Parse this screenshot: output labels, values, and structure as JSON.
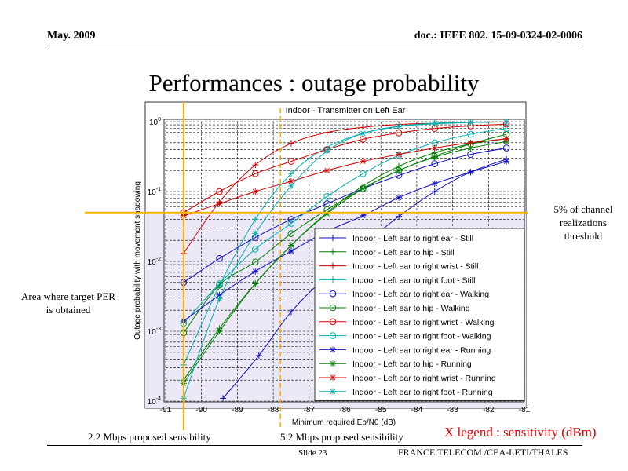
{
  "header": {
    "left": "May. 2009",
    "right": "doc.: IEEE 802. 15-09-0324-02-0006"
  },
  "slide_title": "Performances : outage probability",
  "annotations": {
    "threshold_note": "5% of channel realizations threshold",
    "area_note": "Area where target PER is obtained",
    "sens_22": "2.2 Mbps proposed sensibility",
    "sens_52": "5.2 Mbps proposed sensibility",
    "x_legend": "X legend : sensitivity (dBm)"
  },
  "footer": {
    "slide": "Slide 23",
    "org": "FRANCE TELECOM /CEA-LETI/THALES"
  },
  "colors": {
    "highlight": "#ece8f6",
    "orange": "#f5b000",
    "accent_red": "#e00000"
  },
  "chart_data": {
    "type": "line",
    "title": "Indoor - Transmitter on Left Ear",
    "xlabel": "Minimum required Eb/N0 (dB)",
    "ylabel": "Outage probability with movement shadowing",
    "xlim": [
      -91,
      -81
    ],
    "ylim": [
      0.0001,
      1
    ],
    "yscale": "log",
    "grid": true,
    "legend_placement": "bottom-right",
    "x_ticks": [
      "-91",
      "-90",
      "-89",
      "-88",
      "-87",
      "-86",
      "-85",
      "-84",
      "-83",
      "-82",
      "-81"
    ],
    "y_ticks": [
      {
        "base": "10",
        "exp": "-4",
        "value": 0.0001
      },
      {
        "base": "10",
        "exp": "-3",
        "value": 0.001
      },
      {
        "base": "10",
        "exp": "-2",
        "value": 0.01
      },
      {
        "base": "10",
        "exp": "-1",
        "value": 0.1
      },
      {
        "base": "10",
        "exp": "0",
        "value": 1
      }
    ],
    "reference_lines": {
      "horizontal_y": 0.05,
      "vertical_x": [
        -90.5,
        -87.8
      ]
    },
    "series": [
      {
        "name": "Indoor - Left ear to right ear - Still",
        "color": "#1010c0",
        "marker": "plus",
        "x": [
          -89.4,
          -88.4,
          -87.5,
          -86.5,
          -85.5,
          -84.5,
          -83.5,
          -82.5,
          -81.5
        ],
        "y": [
          0.00011,
          0.00045,
          0.0019,
          0.0062,
          0.017,
          0.044,
          0.1,
          0.19,
          0.29
        ]
      },
      {
        "name": "Indoor - Left ear to hip - Still",
        "color": "#008000",
        "marker": "plus",
        "x": [
          -90.5,
          -89.5,
          -88.5,
          -87.5,
          -86.5,
          -85.5,
          -84.5,
          -83.5,
          -82.5,
          -81.5
        ],
        "y": [
          0.0002,
          0.0011,
          0.0048,
          0.017,
          0.05,
          0.12,
          0.23,
          0.36,
          0.48,
          0.57
        ]
      },
      {
        "name": "Indoor - Left ear to right wrist - Still",
        "color": "#d00000",
        "marker": "plus",
        "x": [
          -90.5,
          -89.5,
          -88.5,
          -87.5,
          -86.5,
          -85.5,
          -84.5,
          -83.5,
          -82.5,
          -81.5
        ],
        "y": [
          0.013,
          0.071,
          0.24,
          0.49,
          0.7,
          0.83,
          0.91,
          0.95,
          0.98,
          0.99
        ]
      },
      {
        "name": "Indoor - Left ear to right foot - Still",
        "color": "#00b0b0",
        "marker": "plus",
        "x": [
          -90.5,
          -89.5,
          -88.5,
          -87.5,
          -86.5,
          -85.5,
          -84.5,
          -83.5,
          -82.5,
          -81.5
        ],
        "y": [
          0.00033,
          0.0045,
          0.04,
          0.18,
          0.43,
          0.68,
          0.85,
          0.93,
          0.97,
          0.99
        ]
      },
      {
        "name": "Indoor - Left ear to right ear - Walking",
        "color": "#1010c0",
        "marker": "circle",
        "x": [
          -90.5,
          -89.5,
          -88.5,
          -87.5,
          -86.5,
          -85.5,
          -84.5,
          -83.5,
          -82.5,
          -81.5
        ],
        "y": [
          0.005,
          0.011,
          0.022,
          0.04,
          0.067,
          0.11,
          0.17,
          0.25,
          0.34,
          0.42
        ]
      },
      {
        "name": "Indoor - Left ear to hip - Walking",
        "color": "#008000",
        "marker": "circle",
        "x": [
          -90.5,
          -89.5,
          -88.5,
          -87.5,
          -86.5,
          -85.5,
          -84.5,
          -83.5,
          -82.5,
          -81.5
        ],
        "y": [
          0.00095,
          0.0046,
          0.0098,
          0.025,
          0.055,
          0.11,
          0.2,
          0.32,
          0.48,
          0.66
        ]
      },
      {
        "name": "Indoor - Left ear to right wrist - Walking",
        "color": "#d00000",
        "marker": "circle",
        "x": [
          -90.5,
          -89.5,
          -88.5,
          -87.5,
          -86.5,
          -85.5,
          -84.5,
          -83.5,
          -82.5,
          -81.5
        ],
        "y": [
          0.05,
          0.1,
          0.18,
          0.27,
          0.4,
          0.56,
          0.69,
          0.8,
          0.87,
          0.92
        ]
      },
      {
        "name": "Indoor - Left ear to right foot - Walking",
        "color": "#00b0b0",
        "marker": "circle",
        "x": [
          -90.5,
          -89.5,
          -88.5,
          -87.5,
          -86.5,
          -85.5,
          -84.5,
          -83.5,
          -82.5,
          -81.5
        ],
        "y": [
          0.0013,
          0.0048,
          0.015,
          0.035,
          0.085,
          0.18,
          0.33,
          0.5,
          0.66,
          0.8
        ]
      },
      {
        "name": "Indoor - Left ear to right ear - Running",
        "color": "#1010c0",
        "marker": "asterisk",
        "x": [
          -90.5,
          -89.5,
          -88.5,
          -87.5,
          -86.5,
          -85.5,
          -84.5,
          -83.5,
          -82.5,
          -81.5
        ],
        "y": [
          0.0014,
          0.0033,
          0.0072,
          0.014,
          0.027,
          0.045,
          0.082,
          0.13,
          0.19,
          0.27
        ]
      },
      {
        "name": "Indoor - Left ear to hip - Running",
        "color": "#008000",
        "marker": "asterisk",
        "x": [
          -90.5,
          -89.5,
          -88.5,
          -87.5,
          -86.5,
          -85.5,
          -84.5,
          -83.5,
          -82.5,
          -81.5
        ],
        "y": [
          0.00018,
          0.001,
          0.0048,
          0.017,
          0.048,
          0.11,
          0.2,
          0.31,
          0.42,
          0.52
        ]
      },
      {
        "name": "Indoor - Left ear to right wrist - Running",
        "color": "#d00000",
        "marker": "asterisk",
        "x": [
          -90.5,
          -89.5,
          -88.5,
          -87.5,
          -86.5,
          -85.5,
          -84.5,
          -83.5,
          -82.5,
          -81.5
        ],
        "y": [
          0.045,
          0.067,
          0.1,
          0.14,
          0.2,
          0.27,
          0.34,
          0.42,
          0.5,
          0.57
        ]
      },
      {
        "name": "Indoor - Left ear to right foot - Running",
        "color": "#00b0b0",
        "marker": "asterisk",
        "x": [
          -90.5,
          -89.5,
          -88.5,
          -87.5,
          -86.5,
          -85.5,
          -84.5,
          -83.5,
          -82.5,
          -81.5
        ],
        "y": [
          0.00011,
          0.0029,
          0.025,
          0.12,
          0.38,
          0.68,
          0.86,
          0.95,
          0.98,
          0.99
        ]
      }
    ]
  }
}
